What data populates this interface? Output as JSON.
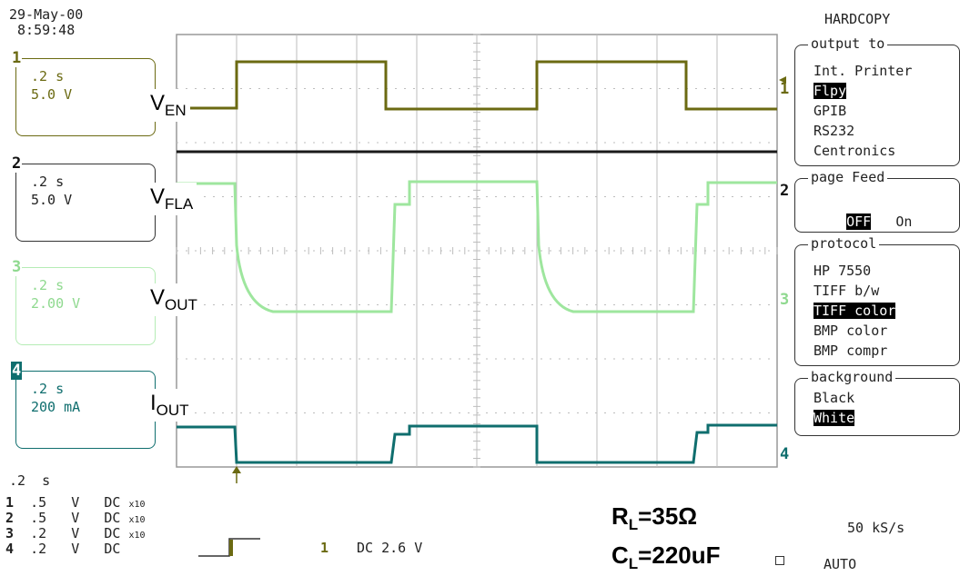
{
  "header": {
    "date": "29-May-00",
    "time": " 8:59:48"
  },
  "channels": [
    {
      "num": "1",
      "timebase": ".2 s",
      "scale": "5.0 V",
      "color": "#6b6a12",
      "signal": "V",
      "sub": "EN"
    },
    {
      "num": "2",
      "timebase": ".2 s",
      "scale": "5.0 V",
      "color": "#1a1a1a",
      "signal": "V",
      "sub": "FLA"
    },
    {
      "num": "3",
      "timebase": ".2 s",
      "scale": "2.00 V",
      "color": "#9ee69e",
      "signal": "V",
      "sub": "OUT"
    },
    {
      "num": "4",
      "timebase": ".2 s",
      "scale": "200 mA",
      "color": "#0f6e6e",
      "signal": "I",
      "sub": "OUT"
    }
  ],
  "hardcopy": {
    "title": "HARDCOPY",
    "output_to": {
      "label": "output to",
      "options": [
        "Int. Printer",
        "Flpy",
        "GPIB",
        "RS232",
        "Centronics"
      ],
      "selected": "Flpy"
    },
    "page_feed": {
      "label": "page Feed",
      "options": [
        "OFF",
        "On"
      ],
      "selected": "OFF"
    },
    "protocol": {
      "label": "protocol",
      "options": [
        "HP 7550",
        "TIFF b/w",
        "TIFF color",
        "BMP color",
        "BMP compr"
      ],
      "selected": "TIFF color"
    },
    "background": {
      "label": "background",
      "options": [
        "Black",
        "White"
      ],
      "selected": "White"
    }
  },
  "footer": {
    "timebase": ".2  s",
    "ch_settings": [
      {
        "num": "1",
        "val": ".5",
        "unit": "V",
        "coupling": "DC",
        "probe": "x10"
      },
      {
        "num": "2",
        "val": ".5",
        "unit": "V",
        "coupling": "DC",
        "probe": "x10"
      },
      {
        "num": "3",
        "val": ".2",
        "unit": "V",
        "coupling": "DC",
        "probe": "x10"
      },
      {
        "num": "4",
        "val": ".2",
        "unit": "V",
        "coupling": "DC",
        "probe": ""
      }
    ],
    "trigger_channel": "1",
    "trigger_level": "DC 2.6 V",
    "sample_rate": "50 kS/s",
    "mode": "AUTO",
    "rl_label": "R",
    "rl_sub": "L",
    "rl_value": "=35Ω",
    "cl_label": "C",
    "cl_sub": "L",
    "cl_value": "=220uF"
  }
}
